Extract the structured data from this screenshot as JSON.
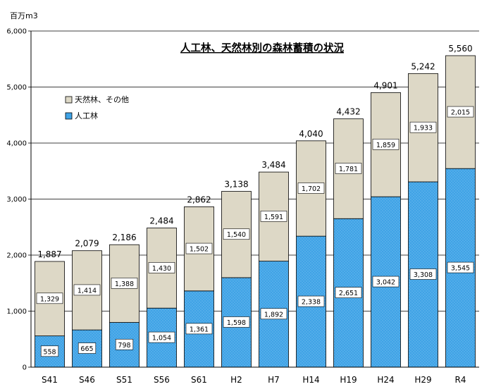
{
  "chart_data": {
    "type": "bar",
    "stacked": true,
    "title": "人工林、天然林別の森林蓄積の状況",
    "unit_label": "百万m3",
    "categories": [
      "S41",
      "S46",
      "S51",
      "S56",
      "S61",
      "H2",
      "H7",
      "H14",
      "H19",
      "H24",
      "H29",
      "R4"
    ],
    "series": [
      {
        "name": "人工林",
        "values": [
          558,
          665,
          798,
          1054,
          1361,
          1598,
          1892,
          2338,
          2651,
          3042,
          3308,
          3545
        ],
        "color": "#3fa3e6"
      },
      {
        "name": "天然林、その他",
        "values": [
          1329,
          1414,
          1388,
          1430,
          1502,
          1540,
          1591,
          1702,
          1781,
          1859,
          1933,
          2015
        ],
        "color": "#ddd8c6"
      }
    ],
    "totals": [
      1887,
      2079,
      2186,
      2484,
      2862,
      3138,
      3484,
      4040,
      4432,
      4901,
      5242,
      5560
    ],
    "ylim": [
      0,
      6000
    ],
    "yticks": [
      0,
      1000,
      2000,
      3000,
      4000,
      5000,
      6000
    ],
    "grid": true,
    "legend_position": "top-left",
    "legend_order": [
      "天然林、その他",
      "人工林"
    ]
  }
}
